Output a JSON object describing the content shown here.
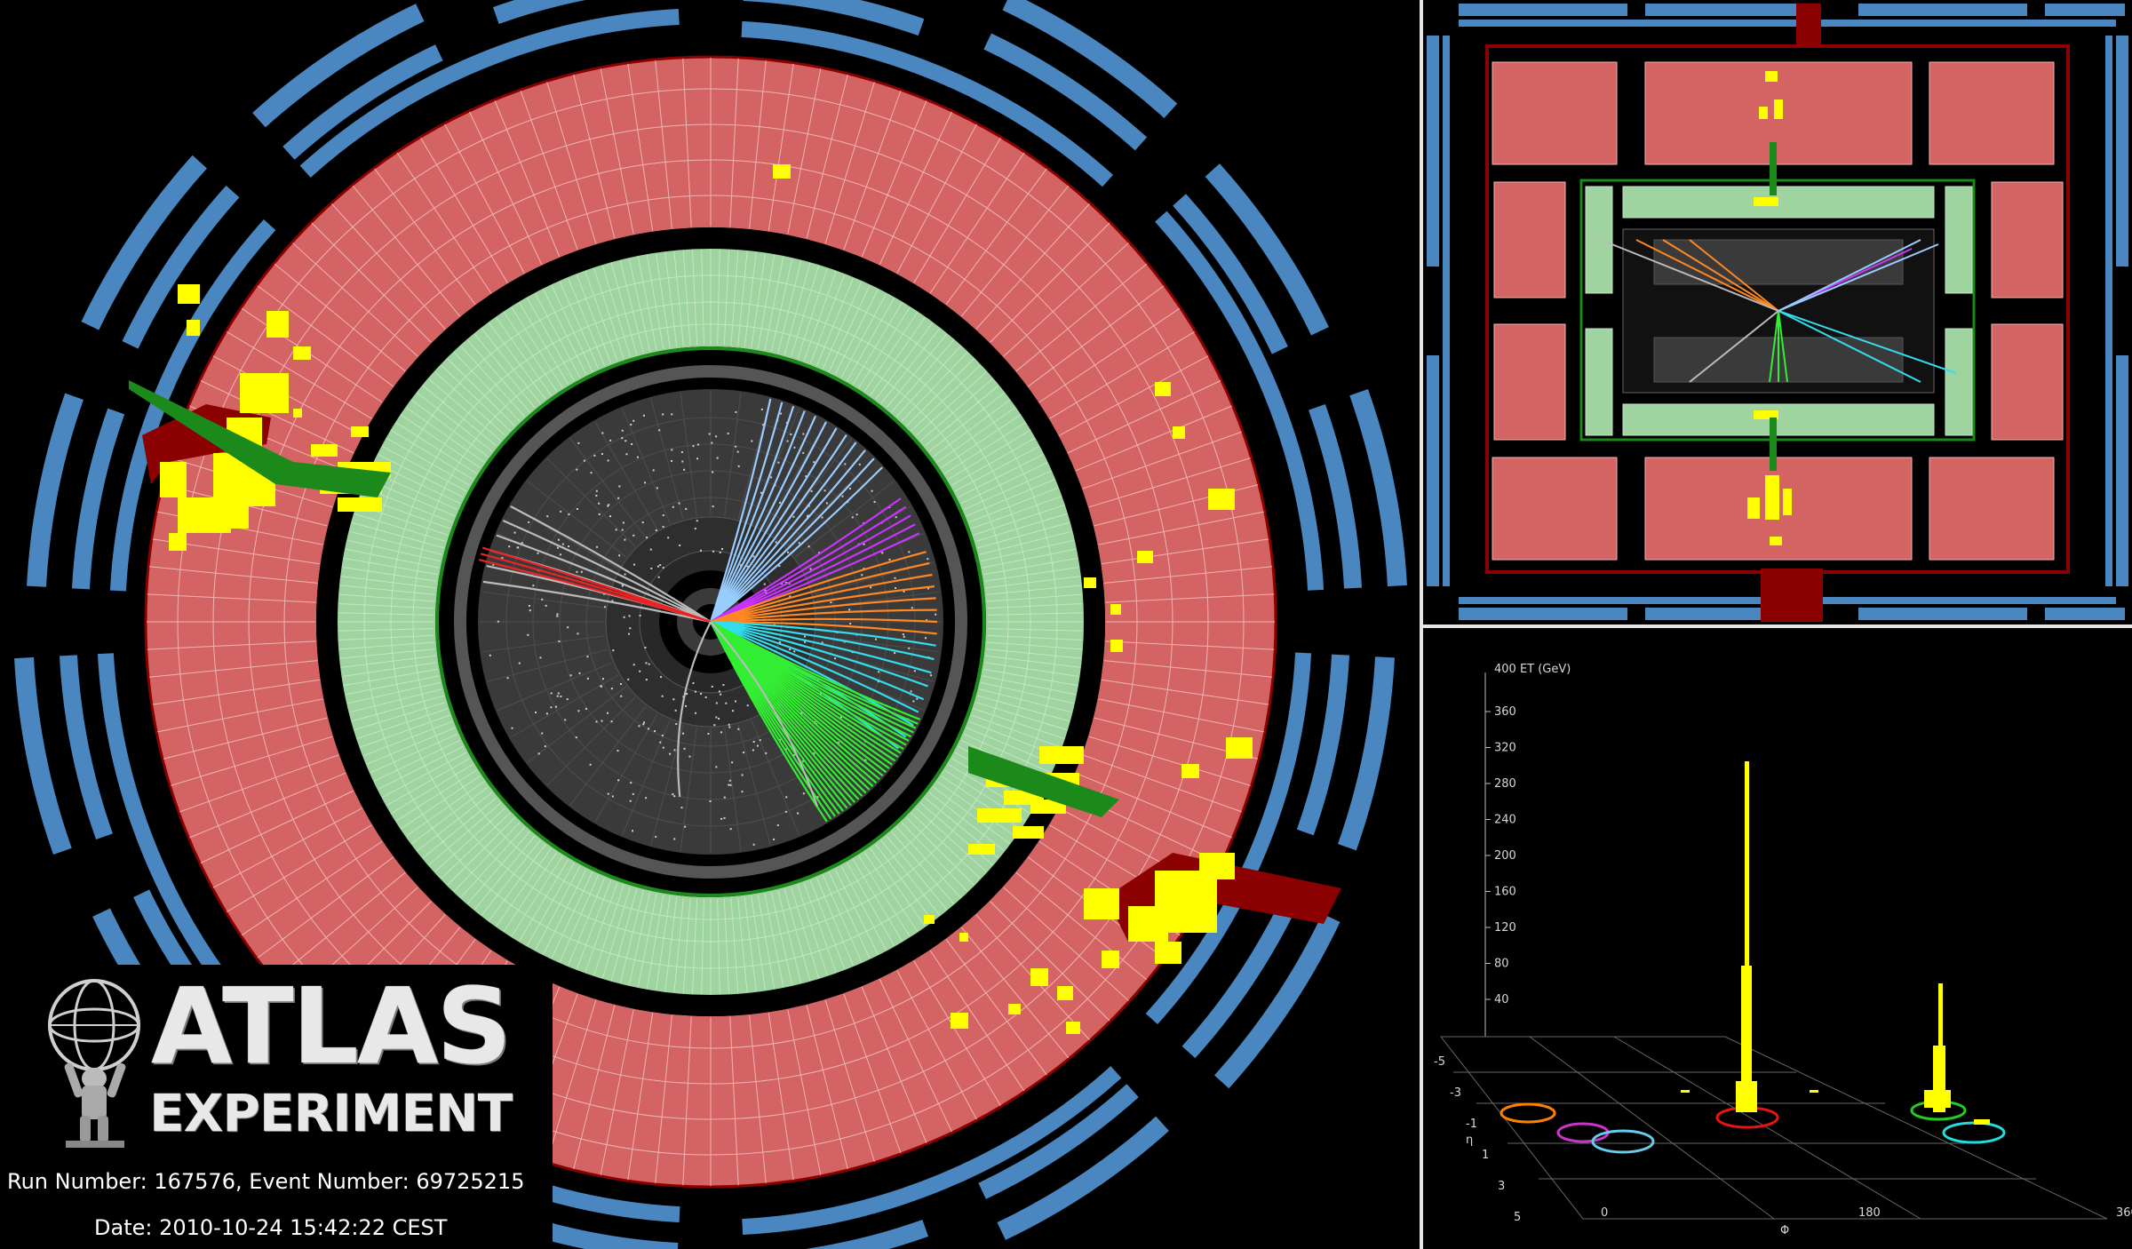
{
  "logo": {
    "title": "ATLAS",
    "subtitle": "EXPERIMENT"
  },
  "event": {
    "run_line": "Run Number: 167576, Event Number: 69725215",
    "date_line": "Date: 2010-10-24 15:42:22 CEST"
  },
  "lego_plot": {
    "z_axis_label": "400 ET (GeV)",
    "z_ticks": [
      "360",
      "320",
      "280",
      "240",
      "200",
      "160",
      "120",
      "80",
      "40"
    ],
    "eta_label": "η",
    "eta_ticks": [
      "-5",
      "-3",
      "-1",
      "1",
      "3",
      "5"
    ],
    "phi_label": "Φ",
    "phi_ticks": [
      "0",
      "180",
      "360"
    ]
  },
  "colors": {
    "background": "#000000",
    "hadronic_calorimeter": "#d46464",
    "em_calorimeter": "#9fd39f",
    "muon_chambers": "#4a86c0",
    "energy_deposit": "#ffff00",
    "jet_cone": "#8b0000",
    "inner_detector": "#3a3a3a"
  }
}
